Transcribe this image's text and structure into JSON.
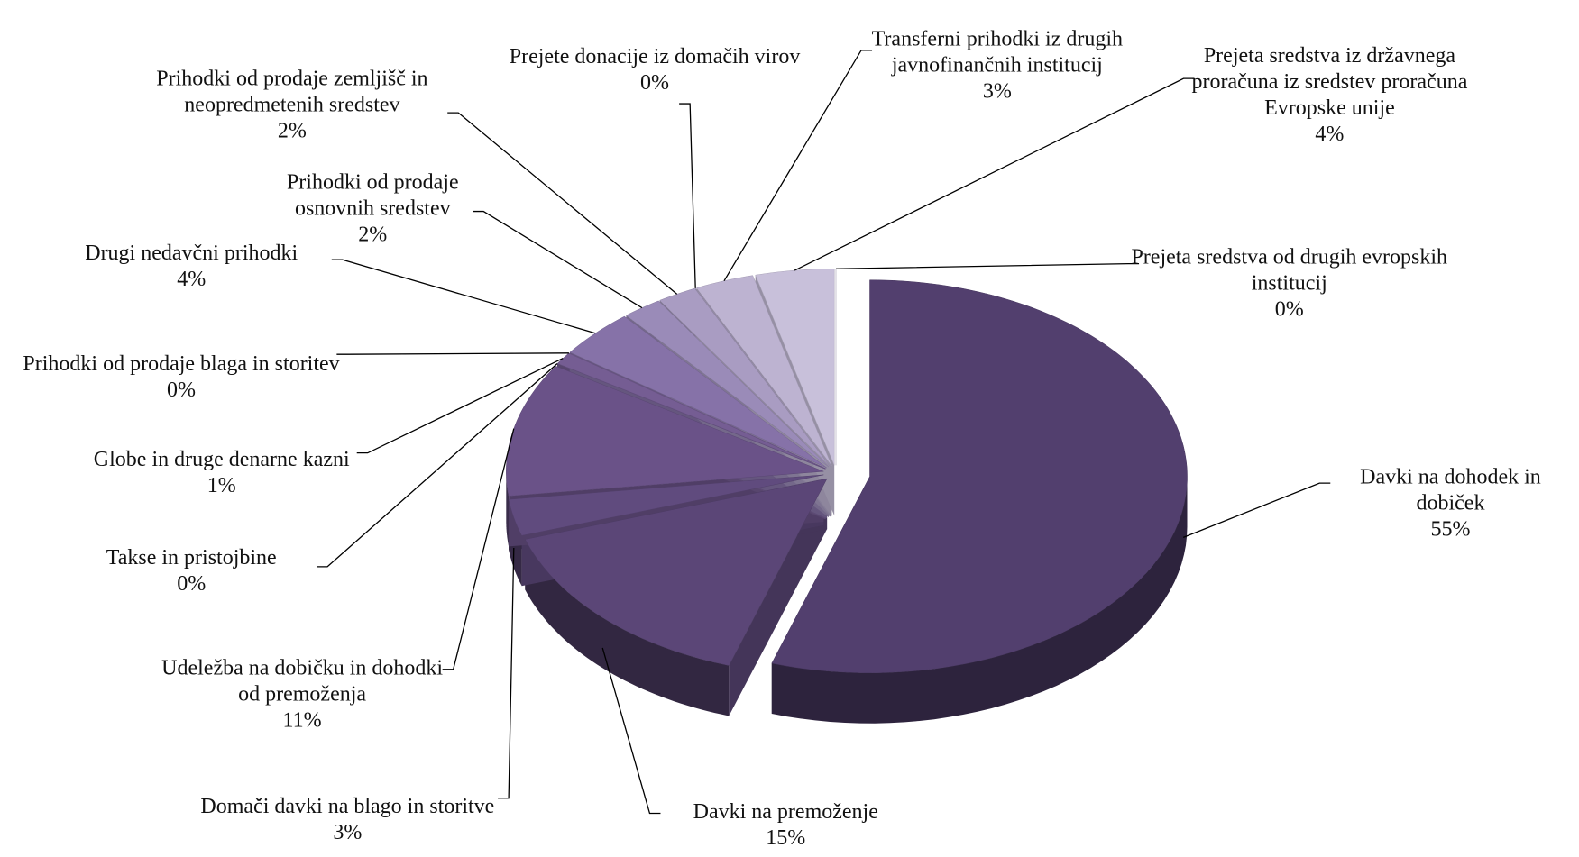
{
  "chart_data": {
    "type": "pie3d",
    "categories": [
      "Davki na dohodek in dobiček",
      "Davki na premoženje",
      "Domači davki na blago in storitve",
      "Udeležba na dobičku in dohodki od premoženja",
      "Takse in pristojbine",
      "Globe in druge denarne kazni",
      "Prihodki od prodaje blaga in storitev",
      "Drugi nedavčni prihodki",
      "Prihodki od prodaje osnovnih sredstev",
      "Prihodki od prodaje zemljišč in neopredmetenih sredstev",
      "Prejete donacije iz domačih virov",
      "Transferni prihodki iz drugih javnofinančnih institucij",
      "Prejeta sredstva iz državnega proračuna iz sredstev proračuna Evropske unije",
      "Prejeta sredstva od drugih evropskih institucij"
    ],
    "values": [
      55,
      15,
      3,
      11,
      0,
      1,
      0,
      4,
      2,
      2,
      0,
      3,
      4,
      0
    ],
    "value_labels": [
      "55%",
      "15%",
      "3%",
      "11%",
      "0%",
      "1%",
      "0%",
      "4%",
      "2%",
      "2%",
      "0%",
      "3%",
      "4%",
      "0%"
    ],
    "colors": [
      "#523f6e",
      "#5b4677",
      "#604b7e",
      "#6a5288",
      "#70598f",
      "#755d93",
      "#7a629a",
      "#8672a8",
      "#9a8bb8",
      "#a99cc2",
      "#b3a8ca",
      "#bdb3d1",
      "#c8c0da",
      "#d6d0e4"
    ]
  }
}
